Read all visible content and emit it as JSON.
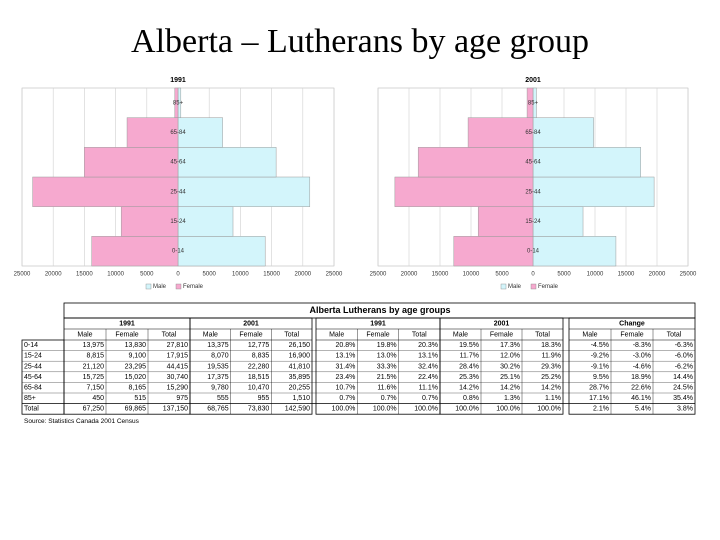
{
  "title": "Alberta – Lutherans by age group",
  "chart_data": [
    {
      "type": "bar",
      "title": "1991",
      "categories": [
        "0-14",
        "15-24",
        "25-44",
        "45-64",
        "65-84",
        "85+"
      ],
      "series": [
        {
          "name": "Male",
          "color": "#d3f5fb",
          "values": [
            13975,
            8815,
            21120,
            15725,
            7150,
            450
          ]
        },
        {
          "name": "Female",
          "color": "#f6a9cf",
          "values": [
            13830,
            9100,
            23295,
            15020,
            8165,
            515
          ]
        }
      ],
      "xlim": [
        -25000,
        25000
      ],
      "xticks": [
        {
          "value": -25000,
          "label": "25000"
        },
        {
          "value": -20000,
          "label": "20000"
        },
        {
          "value": -15000,
          "label": "15000"
        },
        {
          "value": -10000,
          "label": "10000"
        },
        {
          "value": -5000,
          "label": "5000"
        },
        0,
        5000,
        10000,
        15000,
        20000,
        25000
      ],
      "grid": true,
      "legend": "bottom"
    },
    {
      "type": "bar",
      "title": "2001",
      "categories": [
        "0-14",
        "15-24",
        "25-44",
        "45-64",
        "65-84",
        "85+"
      ],
      "series": [
        {
          "name": "Male",
          "color": "#d3f5fb",
          "values": [
            13375,
            8070,
            19535,
            17375,
            9780,
            555
          ]
        },
        {
          "name": "Female",
          "color": "#f6a9cf",
          "values": [
            12775,
            8835,
            22280,
            18515,
            10470,
            955
          ]
        }
      ],
      "xlim": [
        -25000,
        25000
      ],
      "xticks": [
        {
          "value": -25000,
          "label": "25000"
        },
        {
          "value": -20000,
          "label": "20000"
        },
        {
          "value": -15000,
          "label": "15000"
        },
        {
          "value": -10000,
          "label": "10000"
        },
        {
          "value": -5000,
          "label": "5000"
        },
        0,
        5000,
        10000,
        15000,
        20000,
        25000
      ],
      "grid": true,
      "legend": "bottom"
    }
  ],
  "table": {
    "title": "Alberta Lutherans by age groups",
    "groups": [
      "1991",
      "2001",
      "1991",
      "2001",
      "Change"
    ],
    "columns": [
      "Male",
      "Female",
      "Total"
    ],
    "rows": [
      [
        "0-14",
        "13,975",
        "13,830",
        "27,810",
        "13,375",
        "12,775",
        "26,150",
        "20.8%",
        "19.8%",
        "20.3%",
        "19.5%",
        "17.3%",
        "18.3%",
        "-4.5%",
        "-8.3%",
        "-6.3%"
      ],
      [
        "15-24",
        "8,815",
        "9,100",
        "17,915",
        "8,070",
        "8,835",
        "16,900",
        "13.1%",
        "13.0%",
        "13.1%",
        "11.7%",
        "12.0%",
        "11.9%",
        "-9.2%",
        "-3.0%",
        "-6.0%"
      ],
      [
        "25-44",
        "21,120",
        "23,295",
        "44,415",
        "19,535",
        "22,280",
        "41,810",
        "31.4%",
        "33.3%",
        "32.4%",
        "28.4%",
        "30.2%",
        "29.3%",
        "-9.1%",
        "-4.6%",
        "-6.2%"
      ],
      [
        "45-64",
        "15,725",
        "15,020",
        "30,740",
        "17,375",
        "18,515",
        "35,895",
        "23.4%",
        "21.5%",
        "22.4%",
        "25.3%",
        "25.1%",
        "25.2%",
        "9.5%",
        "18.9%",
        "14.4%"
      ],
      [
        "65-84",
        "7,150",
        "8,165",
        "15,290",
        "9,780",
        "10,470",
        "20,255",
        "10.7%",
        "11.6%",
        "11.1%",
        "14.2%",
        "14.2%",
        "14.2%",
        "28.7%",
        "22.6%",
        "24.5%"
      ],
      [
        "85+",
        "450",
        "515",
        "975",
        "555",
        "955",
        "1,510",
        "0.7%",
        "0.7%",
        "0.7%",
        "0.8%",
        "1.3%",
        "1.1%",
        "17.1%",
        "46.1%",
        "35.4%"
      ],
      [
        "Total",
        "67,250",
        "69,865",
        "137,150",
        "68,765",
        "73,830",
        "142,590",
        "100.0%",
        "100.0%",
        "100.0%",
        "100.0%",
        "100.0%",
        "100.0%",
        "2.1%",
        "5.4%",
        "3.8%"
      ]
    ],
    "source": "Source: Statistics Canada 2001 Census"
  }
}
